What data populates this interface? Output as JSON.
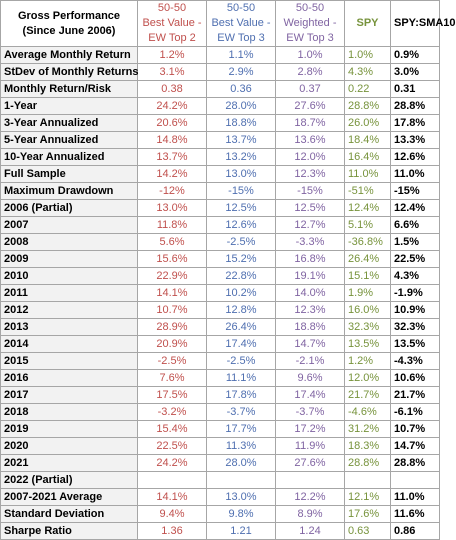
{
  "header": {
    "label": "Gross Performance (Since June 2006)",
    "columns": [
      {
        "line1": "50-50",
        "line2": "Best Value - EW Top 2",
        "color": "#c0504d"
      },
      {
        "line1": "50-50",
        "line2": "Best Value - EW Top 3",
        "color": "#4f6fb0"
      },
      {
        "line1": "50-50",
        "line2": "Weighted - EW Top 3",
        "color": "#8064a2"
      },
      {
        "line1": "SPY",
        "line2": "",
        "color": "#77933c"
      },
      {
        "line1": "SPY:SMA10",
        "line2": "",
        "color": "#000000"
      }
    ]
  },
  "rows": [
    {
      "label": "Average Monthly Return",
      "values": [
        "1.2%",
        "1.1%",
        "1.0%",
        "1.0%",
        "0.9%"
      ]
    },
    {
      "label": "StDev of Monthly Returns",
      "values": [
        "3.1%",
        "2.9%",
        "2.8%",
        "4.3%",
        "3.0%"
      ]
    },
    {
      "label": "Monthly Return/Risk",
      "values": [
        "0.38",
        "0.36",
        "0.37",
        "0.22",
        "0.31"
      ]
    },
    {
      "label": "1-Year",
      "values": [
        "24.2%",
        "28.0%",
        "27.6%",
        "28.8%",
        "28.8%"
      ]
    },
    {
      "label": "3-Year Annualized",
      "values": [
        "20.6%",
        "18.8%",
        "18.7%",
        "26.0%",
        "17.8%"
      ]
    },
    {
      "label": "5-Year Annualized",
      "values": [
        "14.8%",
        "13.7%",
        "13.6%",
        "18.4%",
        "13.3%"
      ]
    },
    {
      "label": "10-Year Annualized",
      "values": [
        "13.7%",
        "13.2%",
        "12.0%",
        "16.4%",
        "12.6%"
      ]
    },
    {
      "label": "Full Sample",
      "values": [
        "14.2%",
        "13.0%",
        "12.3%",
        "11.0%",
        "11.0%"
      ]
    },
    {
      "label": "Maximum Drawdown",
      "values": [
        "-12%",
        "-15%",
        "-15%",
        "-51%",
        "-15%"
      ]
    },
    {
      "label": "2006 (Partial)",
      "values": [
        "13.0%",
        "12.5%",
        "12.5%",
        "12.4%",
        "12.4%"
      ]
    },
    {
      "label": "2007",
      "values": [
        "11.8%",
        "12.6%",
        "12.7%",
        "5.1%",
        "6.6%"
      ]
    },
    {
      "label": "2008",
      "values": [
        "5.6%",
        "-2.5%",
        "-3.3%",
        "-36.8%",
        "1.5%"
      ]
    },
    {
      "label": "2009",
      "values": [
        "15.6%",
        "15.2%",
        "16.8%",
        "26.4%",
        "22.5%"
      ]
    },
    {
      "label": "2010",
      "values": [
        "22.9%",
        "22.8%",
        "19.1%",
        "15.1%",
        "4.3%"
      ]
    },
    {
      "label": "2011",
      "values": [
        "14.1%",
        "10.2%",
        "14.0%",
        "1.9%",
        "-1.9%"
      ]
    },
    {
      "label": "2012",
      "values": [
        "10.7%",
        "12.8%",
        "12.3%",
        "16.0%",
        "10.9%"
      ]
    },
    {
      "label": "2013",
      "values": [
        "28.9%",
        "26.4%",
        "18.8%",
        "32.3%",
        "32.3%"
      ]
    },
    {
      "label": "2014",
      "values": [
        "20.9%",
        "17.4%",
        "14.7%",
        "13.5%",
        "13.5%"
      ]
    },
    {
      "label": "2015",
      "values": [
        "-2.5%",
        "-2.5%",
        "-2.1%",
        "1.2%",
        "-4.3%"
      ]
    },
    {
      "label": "2016",
      "values": [
        "7.6%",
        "11.1%",
        "9.6%",
        "12.0%",
        "10.6%"
      ]
    },
    {
      "label": "2017",
      "values": [
        "17.5%",
        "17.8%",
        "17.4%",
        "21.7%",
        "21.7%"
      ]
    },
    {
      "label": "2018",
      "values": [
        "-3.2%",
        "-3.7%",
        "-3.7%",
        "-4.6%",
        "-6.1%"
      ]
    },
    {
      "label": "2019",
      "values": [
        "15.4%",
        "17.7%",
        "17.2%",
        "31.2%",
        "10.7%"
      ]
    },
    {
      "label": "2020",
      "values": [
        "22.5%",
        "11.3%",
        "11.9%",
        "18.3%",
        "14.7%"
      ]
    },
    {
      "label": "2021",
      "values": [
        "24.2%",
        "28.0%",
        "27.6%",
        "28.8%",
        "28.8%"
      ]
    },
    {
      "label": "2022 (Partial)",
      "values": [
        "",
        "",
        "",
        "",
        ""
      ]
    },
    {
      "label": "2007-2021 Average",
      "values": [
        "14.1%",
        "13.0%",
        "12.2%",
        "12.1%",
        "11.0%"
      ]
    },
    {
      "label": "Standard Deviation",
      "values": [
        "9.4%",
        "9.8%",
        "8.9%",
        "17.6%",
        "11.6%"
      ]
    },
    {
      "label": "Sharpe Ratio",
      "values": [
        "1.36",
        "1.21",
        "1.24",
        "0.63",
        "0.86"
      ]
    }
  ]
}
